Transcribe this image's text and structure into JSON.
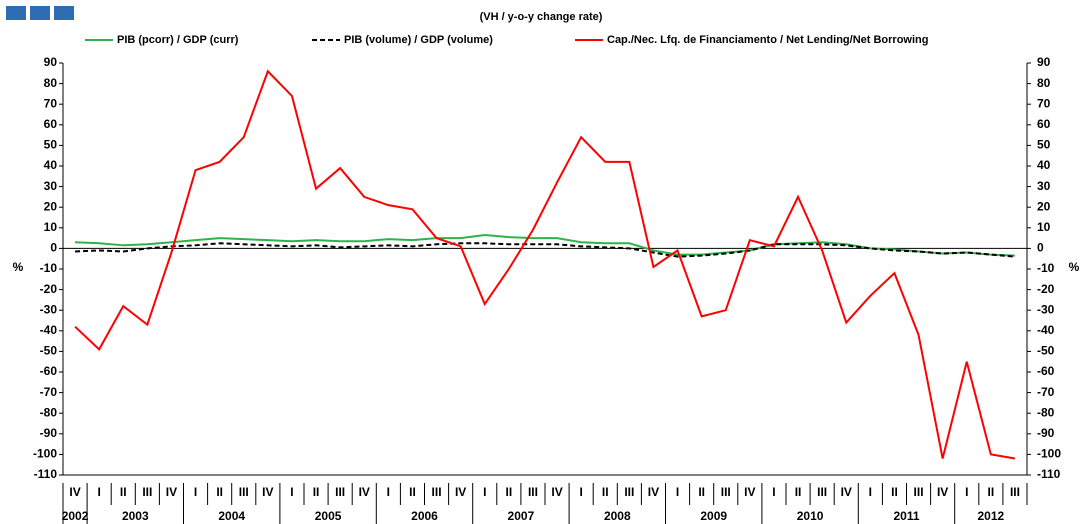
{
  "chart_data": {
    "type": "line",
    "subtitle": "(VH / y-o-y change rate)",
    "y_label": "%",
    "y2_label": "%",
    "categories": [
      "IV",
      "I",
      "II",
      "III",
      "IV",
      "I",
      "II",
      "III",
      "IV",
      "I",
      "II",
      "III",
      "IV",
      "I",
      "II",
      "III",
      "IV",
      "I",
      "II",
      "III",
      "IV",
      "I",
      "II",
      "III",
      "IV",
      "I",
      "II",
      "III",
      "IV",
      "I",
      "II",
      "III",
      "IV",
      "I",
      "II",
      "III",
      "IV",
      "I",
      "II",
      "III"
    ],
    "years": [
      "2002",
      "2003",
      "2004",
      "2005",
      "2006",
      "2007",
      "2008",
      "2009",
      "2010",
      "2011",
      "2012"
    ],
    "series": [
      {
        "name": "PIB (pcorr) / GDP (curr)",
        "color": "#2db34a",
        "dash": false,
        "values": [
          3,
          2.5,
          1.5,
          2,
          3,
          4,
          5,
          4.5,
          4,
          3.5,
          4,
          3.5,
          3.5,
          4.5,
          4,
          5,
          5,
          6.5,
          5.5,
          5,
          5,
          3,
          2.5,
          2.5,
          -1,
          -3,
          -3,
          -2,
          -1,
          2,
          2.5,
          3,
          2,
          0,
          -0.5,
          -1.5,
          -2.5,
          -2,
          -3,
          -3.5
        ]
      },
      {
        "name": "PIB (volume) / GDP (volume)",
        "color": "#000000",
        "dash": true,
        "values": [
          -1.5,
          -1,
          -1.5,
          0,
          1,
          1.5,
          2.5,
          2,
          1.5,
          1,
          1.5,
          0.5,
          1,
          1.5,
          1,
          2,
          2.5,
          2.5,
          2,
          2,
          2,
          1,
          0.5,
          0,
          -2,
          -4,
          -3.5,
          -2.5,
          -1,
          2,
          2,
          2,
          1.5,
          0,
          -1,
          -1.5,
          -2.5,
          -2,
          -3,
          -4
        ]
      },
      {
        "name": "Cap./Nec. Lfq. de Financiamento / Net Lending/Net Borrowing",
        "color": "#ff0000",
        "dash": false,
        "values": [
          -38,
          -49,
          -28,
          -37,
          -2,
          38,
          42,
          54,
          86,
          74,
          29,
          39,
          25,
          21,
          19,
          5,
          1,
          -27,
          -10,
          9,
          32,
          54,
          42,
          42,
          -9,
          -1,
          -33,
          -30,
          4,
          1,
          25,
          -1,
          -36,
          -23,
          -12,
          -42,
          -102,
          -55,
          -100,
          -102
        ]
      }
    ],
    "ylim": [
      -110,
      90
    ],
    "yticks": [
      -110,
      -100,
      -90,
      -80,
      -70,
      -60,
      -50,
      -40,
      -30,
      -20,
      -10,
      0,
      10,
      20,
      30,
      40,
      50,
      60,
      70,
      80,
      90
    ],
    "y2lim": [
      -110,
      90
    ],
    "y2ticks": [
      -110,
      -100,
      -90,
      -80,
      -70,
      -60,
      -50,
      -40,
      -30,
      -20,
      -10,
      0,
      10,
      20,
      30,
      40,
      50,
      60,
      70,
      80,
      90
    ],
    "grid": false
  }
}
